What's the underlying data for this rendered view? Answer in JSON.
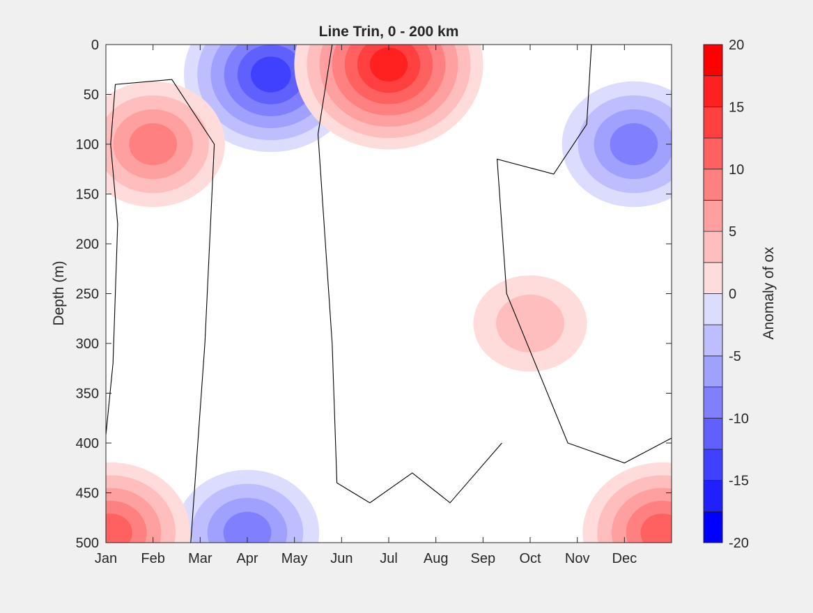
{
  "chart_data": {
    "type": "heatmap",
    "subtype": "filled-contour",
    "title": "Line Trin, 0 - 200 km",
    "xlabel": "",
    "ylabel": "Depth (m)",
    "x_ticks": [
      "Jan",
      "Feb",
      "Mar",
      "Apr",
      "May",
      "Jun",
      "Jul",
      "Aug",
      "Sep",
      "Oct",
      "Nov",
      "Dec"
    ],
    "y_ticks": [
      0,
      50,
      100,
      150,
      200,
      250,
      300,
      350,
      400,
      450,
      500
    ],
    "xlim": [
      0,
      12
    ],
    "ylim": [
      0,
      500
    ],
    "y_reversed": true,
    "colorbar": {
      "label": "Anomaly of ox",
      "ticks": [
        20,
        15,
        10,
        5,
        0,
        -5,
        -10,
        -15,
        -20
      ],
      "levels": [
        -20,
        -17.5,
        -15,
        -12.5,
        -10,
        -7.5,
        -5,
        -2.5,
        0,
        2.5,
        5,
        7.5,
        10,
        12.5,
        15,
        17.5,
        20
      ],
      "colors": [
        "#0000ff",
        "#2020ff",
        "#4040ff",
        "#6060ff",
        "#8080ff",
        "#a0a0ff",
        "#bebeff",
        "#dcdcff",
        "#ffffff",
        "#ffffff",
        "#ffdcdc",
        "#ffbebe",
        "#ffa0a0",
        "#ff8080",
        "#ff6060",
        "#ff4040",
        "#ff2020",
        "#ff0000"
      ]
    },
    "features": [
      {
        "sign": "negative",
        "month": 3.5,
        "depth": 30,
        "peak": -16
      },
      {
        "sign": "positive",
        "month": 6.0,
        "depth": 20,
        "peak": 19
      },
      {
        "sign": "positive",
        "month": 1.0,
        "depth": 100,
        "peak": 10
      },
      {
        "sign": "negative",
        "month": 11.2,
        "depth": 100,
        "peak": -11
      },
      {
        "sign": "negative",
        "month": 3.0,
        "depth": 490,
        "peak": -12
      },
      {
        "sign": "positive",
        "month": 0.1,
        "depth": 490,
        "peak": 13
      },
      {
        "sign": "positive",
        "month": 11.8,
        "depth": 490,
        "peak": 13
      },
      {
        "sign": "positive",
        "month": 9.0,
        "depth": 280,
        "peak": 6
      }
    ]
  }
}
